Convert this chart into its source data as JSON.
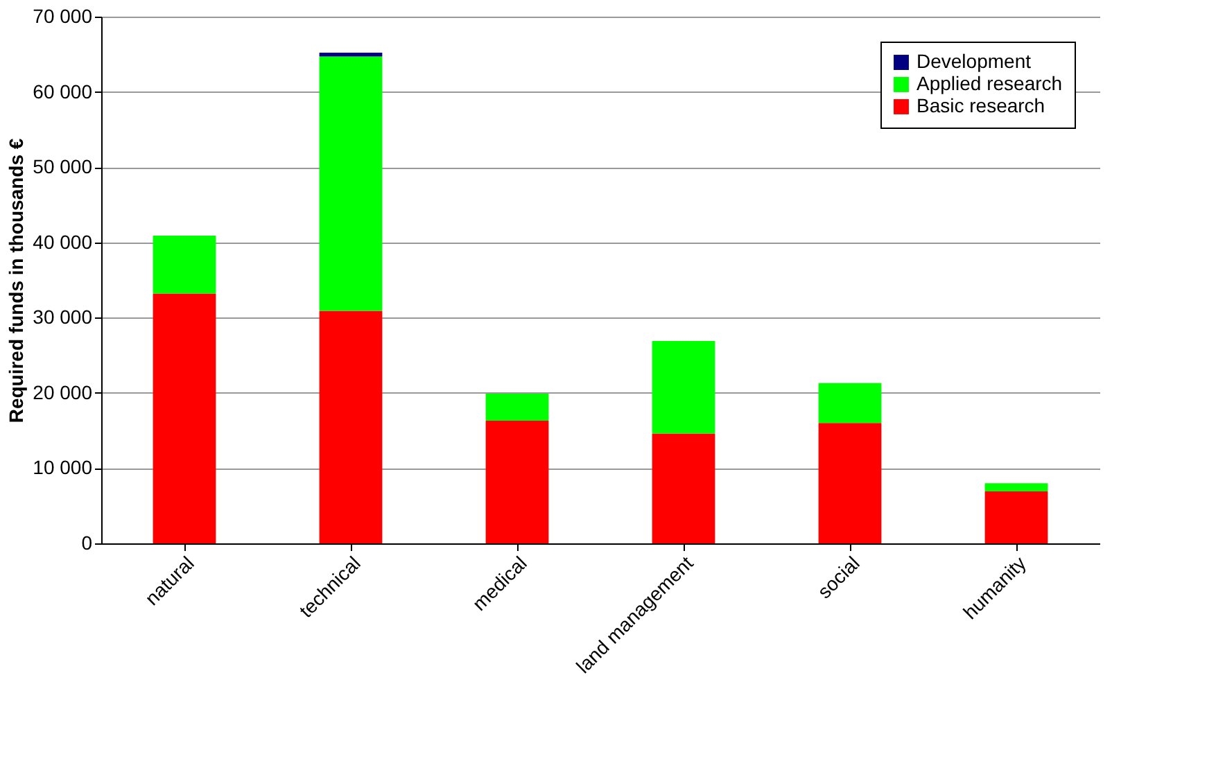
{
  "chart_data": {
    "type": "bar",
    "ylabel": "Required funds in thousands €",
    "categories": [
      "natural",
      "technical",
      "medical",
      "land management",
      "social",
      "humanity"
    ],
    "stacked": true,
    "series": [
      {
        "name": "Basic research",
        "color": "#ff0000",
        "values": [
          33200,
          30900,
          16300,
          14600,
          16000,
          6900
        ]
      },
      {
        "name": "Applied research",
        "color": "#00ff00",
        "values": [
          7700,
          33800,
          3600,
          12300,
          5300,
          1100
        ]
      },
      {
        "name": "Development",
        "color": "#000080",
        "values": [
          0,
          500,
          0,
          0,
          0,
          0
        ]
      }
    ],
    "ylim": [
      0,
      70000
    ],
    "yticks": [
      {
        "value": 0,
        "label": "0"
      },
      {
        "value": 10000,
        "label": "10 000"
      },
      {
        "value": 20000,
        "label": "20 000"
      },
      {
        "value": 30000,
        "label": "30 000"
      },
      {
        "value": 40000,
        "label": "40 000"
      },
      {
        "value": 50000,
        "label": "50 000"
      },
      {
        "value": 60000,
        "label": "60 000"
      },
      {
        "value": 70000,
        "label": "70 000"
      }
    ],
    "grid": "y",
    "legend": "top right"
  }
}
